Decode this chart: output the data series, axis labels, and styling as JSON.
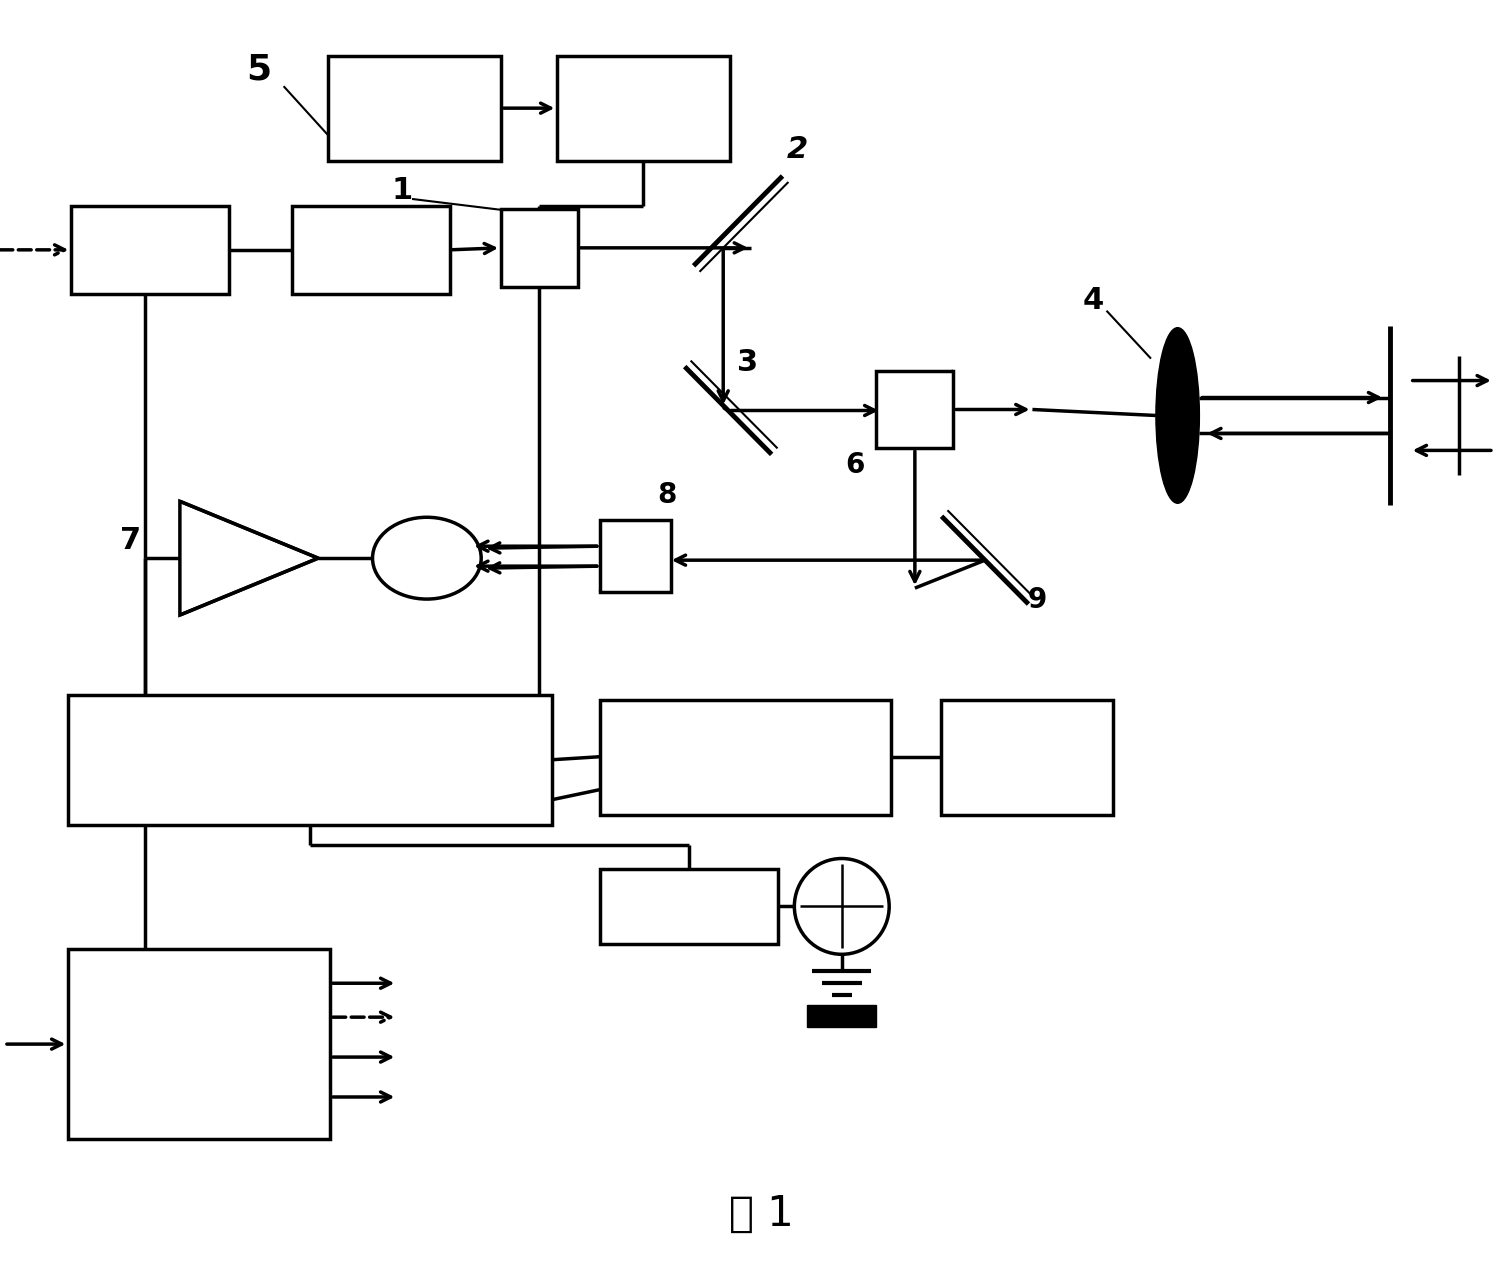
{
  "title": "图 1",
  "bg_color": "#ffffff",
  "lc": "#000000",
  "lw": 2.5
}
